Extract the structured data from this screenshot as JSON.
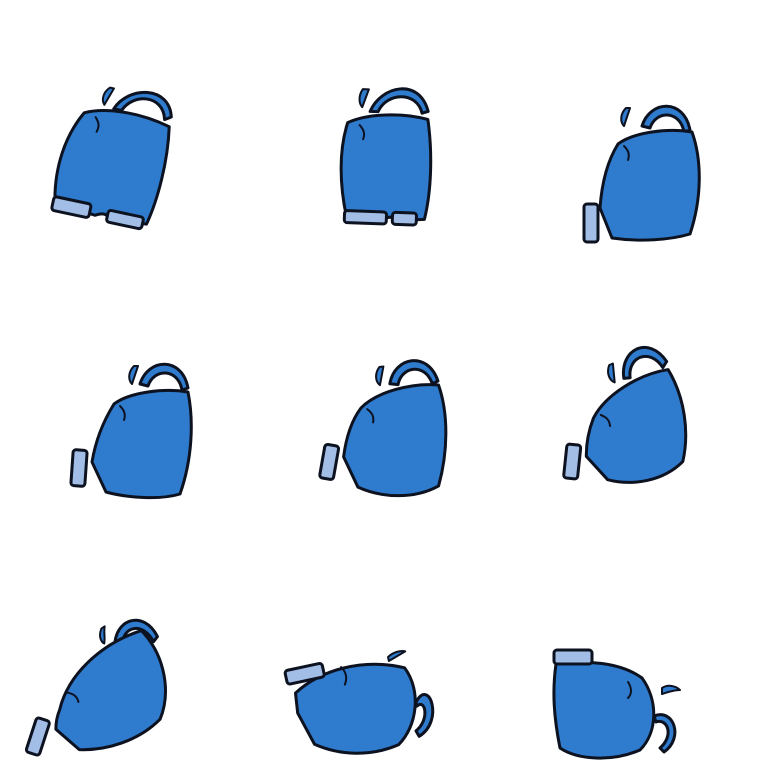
{
  "sheet": {
    "layout": "3x3 sprite grid",
    "frame_count": 9,
    "colors": {
      "body": "#2f7bce",
      "outline": "#0d1220",
      "cuff": "#a3bee6",
      "background": "#ffffff"
    }
  },
  "frames": [
    {
      "id": 1,
      "pose": "standing"
    },
    {
      "id": 2,
      "pose": "standing"
    },
    {
      "id": 3,
      "pose": "leaning"
    },
    {
      "id": 4,
      "pose": "leaning"
    },
    {
      "id": 5,
      "pose": "tilting"
    },
    {
      "id": 6,
      "pose": "tilting"
    },
    {
      "id": 7,
      "pose": "sliding"
    },
    {
      "id": 8,
      "pose": "sliding"
    },
    {
      "id": 9,
      "pose": "upside-down"
    }
  ]
}
